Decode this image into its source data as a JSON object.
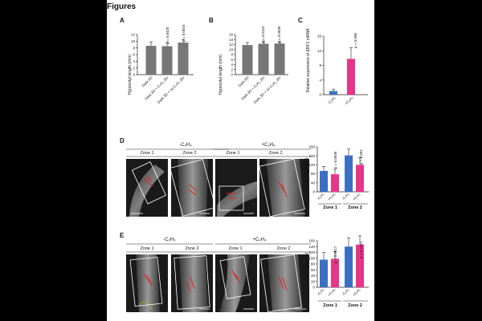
{
  "header": {
    "title": "Figures"
  },
  "panels": {
    "A": {
      "letter": "A",
      "ylabel": "Hypocotyl length (mm)",
      "yticks": [
        "0",
        "2",
        "4",
        "6",
        "8",
        "10",
        "12"
      ],
      "pvalues": [
        "p = 0.8420",
        "p = 0.0016"
      ],
      "xlabels": [
        "Dark 3D",
        "Dark 3D + C₂H₄ 2hr",
        "Dark 3D + no C₂H₄ 2hr"
      ]
    },
    "B": {
      "letter": "B",
      "ylabel": "Hypocotyl length (mm)",
      "yticks": [
        "0",
        "2",
        "4",
        "6",
        "8",
        "10",
        "12",
        "14",
        "16"
      ],
      "pvalues": [
        "p = 0.0153",
        "p = 0.0030"
      ],
      "xlabels": [
        "Dark 3D",
        "Dark 3D + C₂H₄ 2hr",
        "Dark 3D + no C₂H₄ 2hr"
      ]
    },
    "C": {
      "letter": "C",
      "ylabel": "Relative expression of ERF1 mRNA",
      "yticks": [
        "0",
        "4",
        "8",
        "12",
        "16"
      ],
      "pvalue": "p = 0.008",
      "xlabels": [
        "-C₂H₄",
        "+C₂H₄"
      ]
    },
    "D": {
      "letter": "D",
      "cond_minus": "-C₂H₄",
      "cond_plus": "+C₂H₄",
      "zones": [
        "Zone 1",
        "Zone 2",
        "Zone 1",
        "Zone 2"
      ],
      "chart_ylabel": "Cell length (μm)",
      "yticks": [
        "0",
        "40",
        "80",
        "120",
        "160",
        "200"
      ],
      "pvalues": [
        "p = 0.0036",
        "p < 0.001"
      ],
      "xlabels": [
        "-C₂H₄",
        "+C₂H₄",
        "-C₂H₄",
        "+C₂H₄"
      ],
      "zone_labels": [
        "Zone 1",
        "Zone 2"
      ]
    },
    "E": {
      "letter": "E",
      "cond_minus": "-C₂H₄",
      "cond_plus": "+C₂H₄",
      "zones": [
        "Zone 1",
        "Zone 2",
        "Zone 1",
        "Zone 2"
      ],
      "chart_ylabel": "Cell length (μm)",
      "yticks": [
        "0",
        "20",
        "40",
        "60",
        "80",
        "100",
        "120",
        "140",
        "160"
      ],
      "pvalues": [
        "p = 0.9617",
        "p = 0.2261"
      ],
      "xlabels": [
        "-C₂H₄",
        "+C₂H₄",
        "-C₂H₄",
        "+C₂H₄"
      ],
      "zone_labels": [
        "Zone 1",
        "Zone 2"
      ]
    }
  },
  "colors": {
    "gray_bar": "#777777",
    "blue_bar": "#3b6fc4",
    "pink_bar": "#e8358a",
    "micro_bg": "#1a1a1a",
    "roi_red": "#e02020"
  },
  "chart_data": [
    {
      "type": "bar",
      "panel": "A",
      "ylabel": "Hypocotyl length (mm)",
      "ylim": [
        0,
        12
      ],
      "categories": [
        "Dark 3D",
        "Dark 3D + C₂H₄ 2hr",
        "Dark 3D + no C₂H₄ 2hr"
      ],
      "values": [
        8.6,
        8.5,
        9.6
      ],
      "errors": [
        1.2,
        1.2,
        0.9
      ]
    },
    {
      "type": "bar",
      "panel": "B",
      "ylabel": "Hypocotyl length (mm)",
      "ylim": [
        0,
        16
      ],
      "categories": [
        "Dark 3D",
        "Dark 3D + C₂H₄ 2hr",
        "Dark 3D + no C₂H₄ 2hr"
      ],
      "values": [
        11.8,
        12.3,
        12.4
      ],
      "errors": [
        1.0,
        1.1,
        0.9
      ]
    },
    {
      "type": "bar",
      "panel": "C",
      "ylabel": "Relative expression of ERF1 mRNA",
      "ylim": [
        0,
        16
      ],
      "categories": [
        "-C₂H₄",
        "+C₂H₄"
      ],
      "values": [
        1.0,
        9.8
      ],
      "errors": [
        0.5,
        3.0
      ]
    },
    {
      "type": "bar",
      "panel": "D",
      "ylabel": "Cell length (μm)",
      "ylim": [
        0,
        200
      ],
      "groups": [
        "Zone 1",
        "Zone 2"
      ],
      "categories": [
        "-C₂H₄",
        "+C₂H₄"
      ],
      "series": [
        {
          "name": "-C₂H₄",
          "values": [
            93,
            162
          ]
        },
        {
          "name": "+C₂H₄",
          "values": [
            78,
            120
          ]
        }
      ],
      "errors": [
        [
          20,
          28
        ],
        [
          22,
          32
        ]
      ]
    },
    {
      "type": "bar",
      "panel": "E",
      "ylabel": "Cell length (μm)",
      "ylim": [
        0,
        160
      ],
      "groups": [
        "Zone 1",
        "Zone 2"
      ],
      "categories": [
        "-C₂H₄",
        "+C₂H₄"
      ],
      "series": [
        {
          "name": "-C₂H₄",
          "values": [
            95,
            140
          ]
        },
        {
          "name": "+C₂H₄",
          "values": [
            98,
            147
          ]
        }
      ],
      "errors": [
        [
          25,
          30
        ],
        [
          25,
          30
        ]
      ]
    }
  ]
}
